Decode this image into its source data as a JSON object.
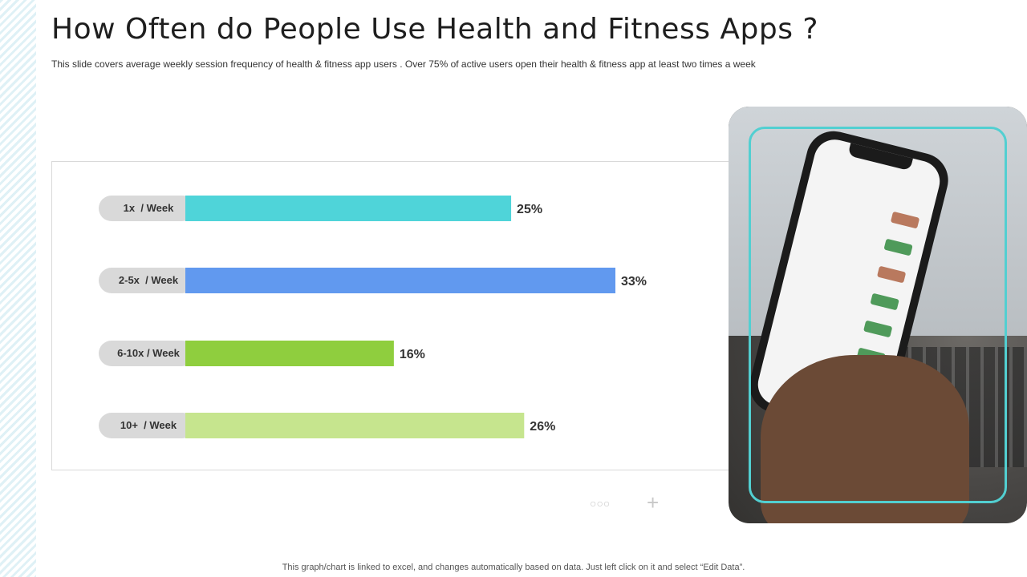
{
  "slide": {
    "title": "How Often do People Use Health and Fitness Apps ?",
    "subtitle": "This slide covers  average  weekly session frequency  of health & fitness app users . Over 75% of active  users open  their health  & fitness app at least two times a week",
    "footer": "This graph/chart is linked to excel,  and changes automatically based on data. Just left click on it and select “Edit Data”."
  },
  "chart_data": {
    "type": "bar",
    "orientation": "horizontal",
    "categories": [
      "1x  / Week",
      "2-5x  / Week",
      "6-10x / Week",
      "10+  / Week"
    ],
    "values": [
      25,
      33,
      16,
      26
    ],
    "value_labels": [
      "25%",
      "33%",
      "16%",
      "26%"
    ],
    "colors": [
      "#4fd4d9",
      "#6199ef",
      "#8fce3e",
      "#c6e58e"
    ],
    "label_pill_color": "#d9d9d9",
    "xlim": [
      0,
      33
    ],
    "grid": false,
    "legend": "none"
  },
  "controls": {
    "dots_icon": "○○○",
    "plus_icon": "+"
  },
  "image": {
    "description_icon": "hand-holding-phone-photo"
  }
}
